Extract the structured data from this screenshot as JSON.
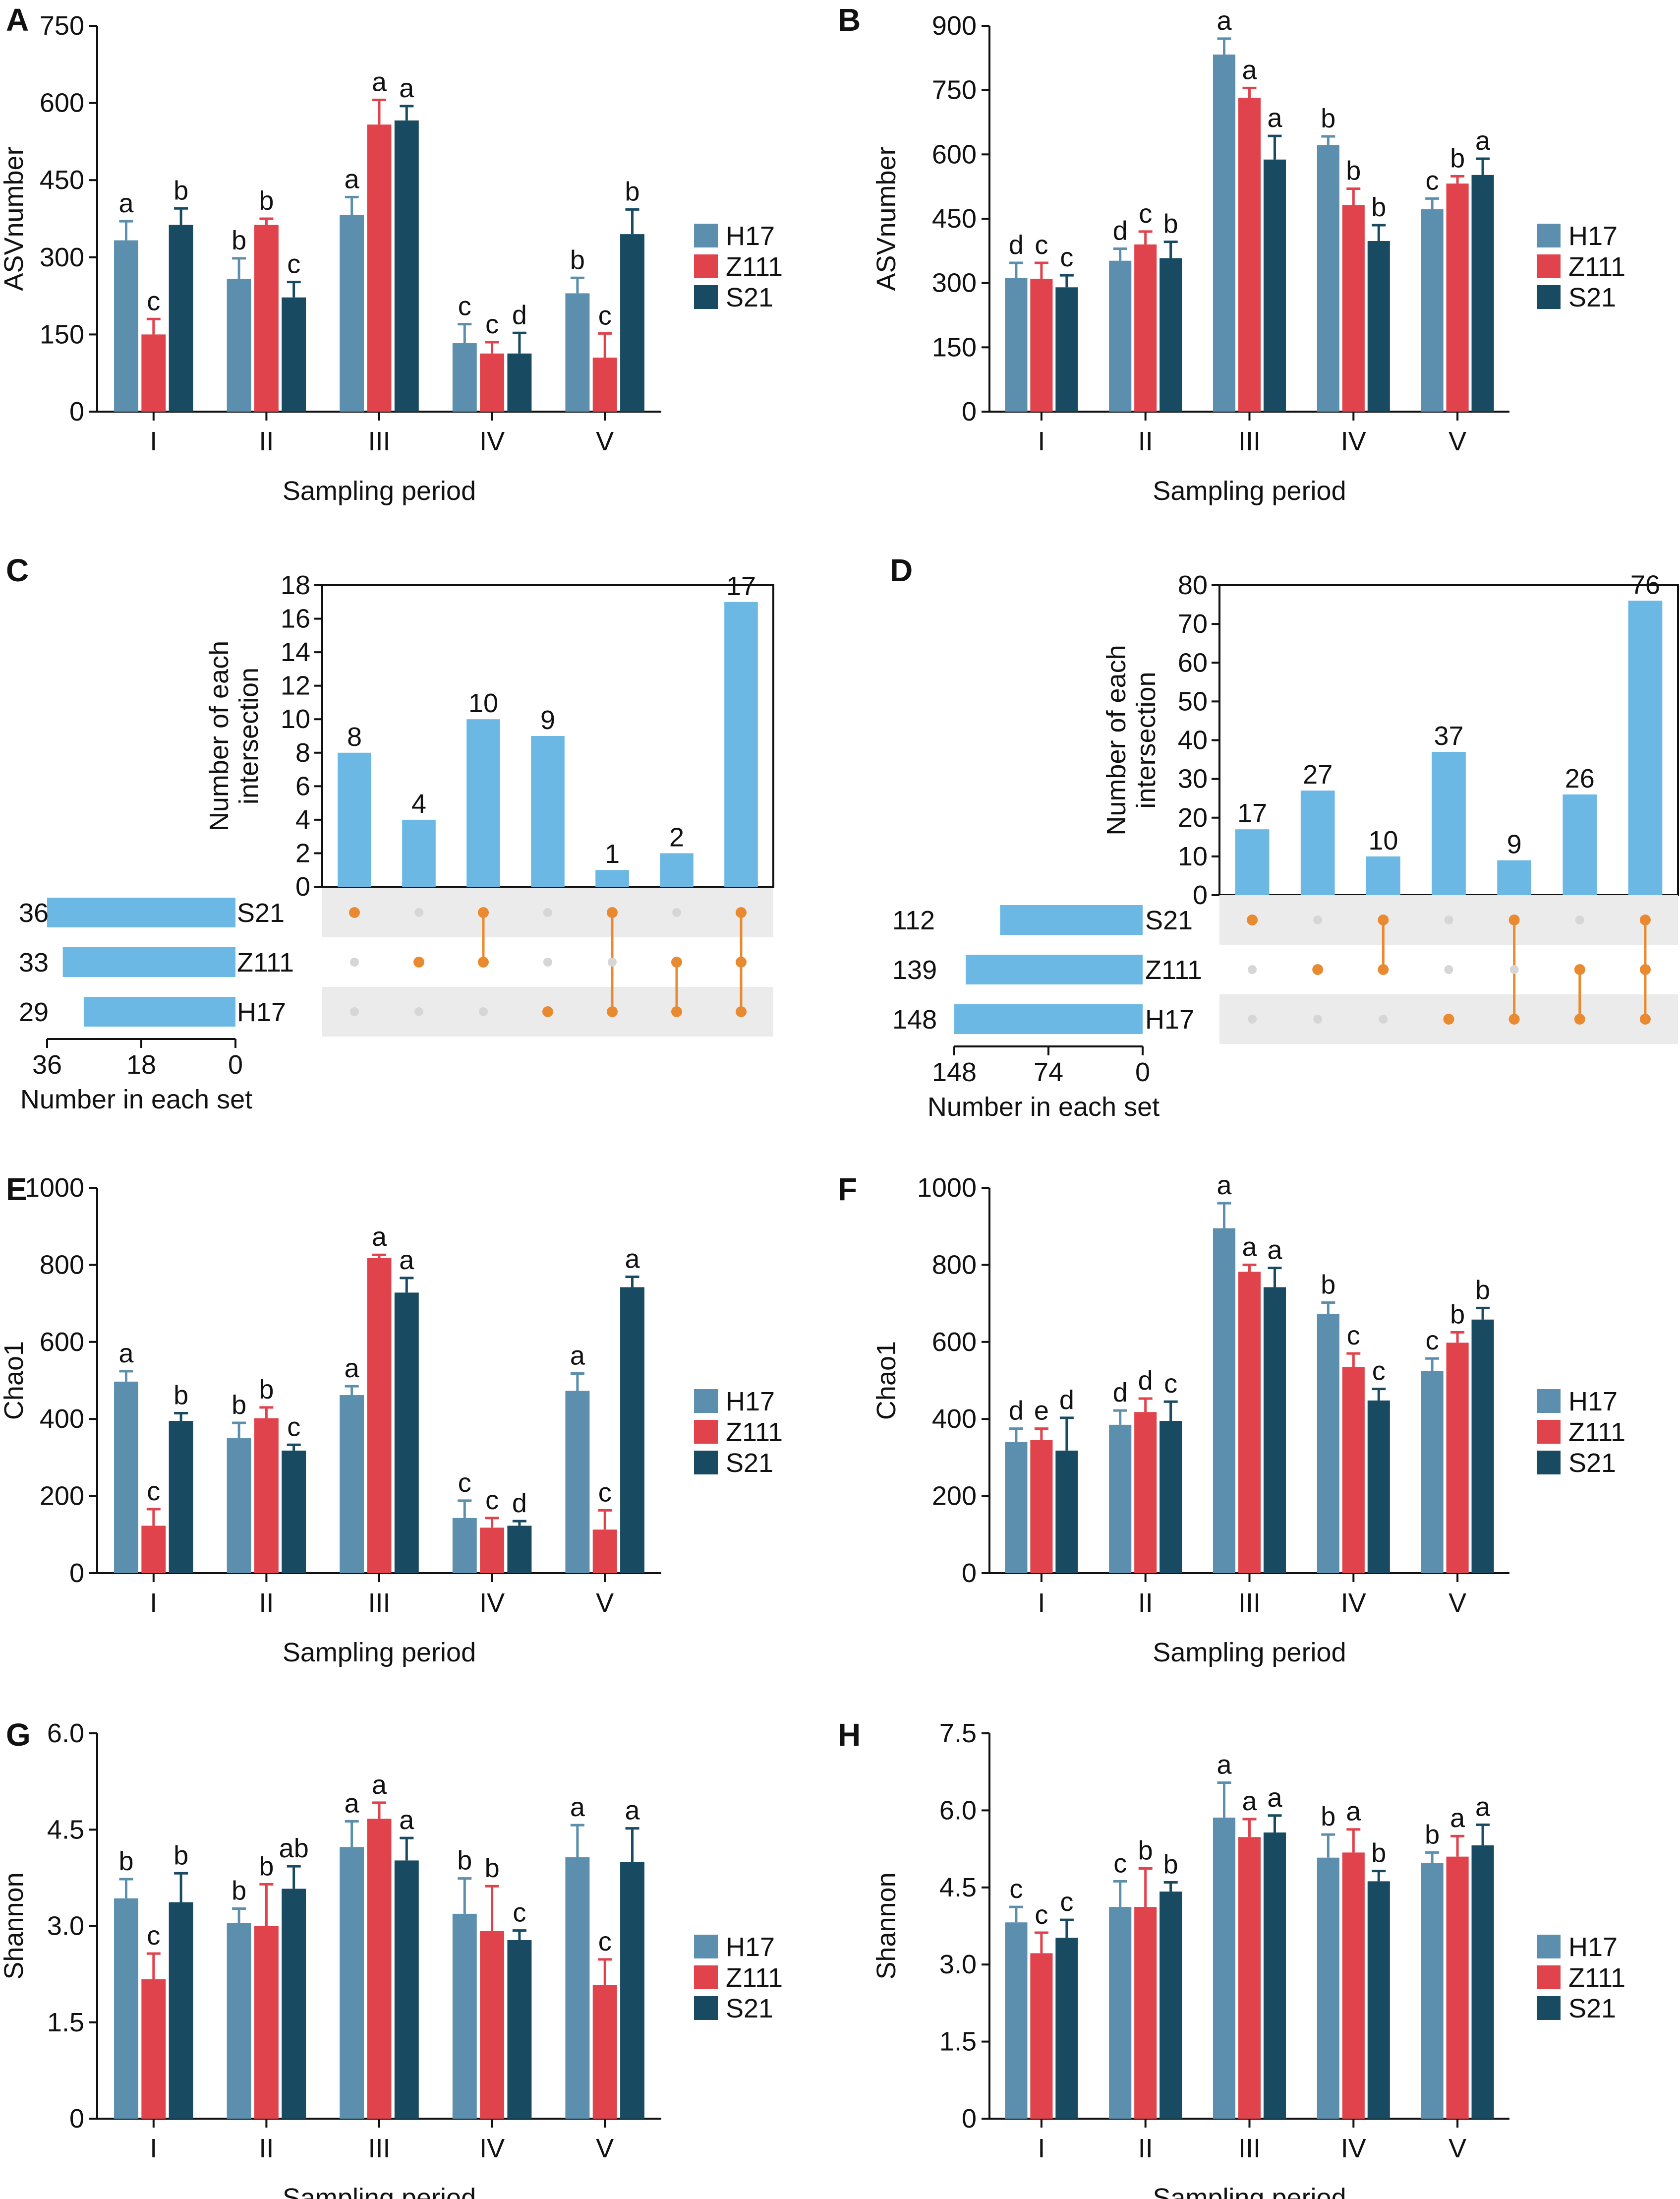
{
  "colors": {
    "H17": "#5b8fad",
    "Z111": "#e0434b",
    "S21": "#184a61",
    "upset_bar": "#6bb8e4",
    "upset_dot": "#ea8a30",
    "upset_dot_off": "#d6d6d6",
    "upset_band": "#ebebeb"
  },
  "chart_data": [
    {
      "panel": "A",
      "type": "bar",
      "categories": [
        "I",
        "II",
        "III",
        "IV",
        "V"
      ],
      "xlabel": "Sampling period",
      "ylabel": "ASVnumber",
      "ylim": [
        0,
        750
      ],
      "yticks": [
        "0",
        "150",
        "300",
        "450",
        "600",
        "750"
      ],
      "legend": "right",
      "series": [
        {
          "name": "H17",
          "values": [
            333,
            258,
            382,
            133,
            230
          ],
          "errors": [
            37,
            40,
            35,
            37,
            30
          ],
          "letters": [
            "a",
            "b",
            "a",
            "c",
            "b"
          ]
        },
        {
          "name": "Z111",
          "values": [
            150,
            363,
            558,
            113,
            105
          ],
          "errors": [
            30,
            12,
            48,
            22,
            47
          ],
          "letters": [
            "c",
            "b",
            "a",
            "c",
            "c"
          ]
        },
        {
          "name": "S21",
          "values": [
            363,
            222,
            566,
            113,
            345
          ],
          "errors": [
            32,
            30,
            28,
            40,
            48
          ],
          "letters": [
            "b",
            "c",
            "a",
            "d",
            "b"
          ]
        }
      ]
    },
    {
      "panel": "B",
      "type": "bar",
      "categories": [
        "I",
        "II",
        "III",
        "IV",
        "V"
      ],
      "xlabel": "Sampling period",
      "ylabel": "ASVnumber",
      "ylim": [
        0,
        900
      ],
      "yticks": [
        "0",
        "150",
        "300",
        "450",
        "600",
        "750",
        "900"
      ],
      "legend": "right",
      "series": [
        {
          "name": "H17",
          "values": [
            312,
            352,
            833,
            622,
            472
          ],
          "errors": [
            35,
            28,
            37,
            20,
            25
          ],
          "letters": [
            "d",
            "d",
            "a",
            "b",
            "c"
          ]
        },
        {
          "name": "Z111",
          "values": [
            310,
            390,
            732,
            482,
            532
          ],
          "errors": [
            37,
            30,
            23,
            38,
            17
          ],
          "letters": [
            "c",
            "c",
            "a",
            "b",
            "b"
          ]
        },
        {
          "name": "S21",
          "values": [
            290,
            358,
            588,
            398,
            552
          ],
          "errors": [
            28,
            38,
            55,
            37,
            38
          ],
          "letters": [
            "c",
            "b",
            "a",
            "b",
            "a"
          ]
        }
      ]
    },
    {
      "panel": "C",
      "type": "bar",
      "subtype": "upset",
      "ylabel": "Number of each intersection",
      "xlabel": "Number in each set",
      "ylim": [
        0,
        18
      ],
      "yticks": [
        "0",
        "2",
        "4",
        "6",
        "8",
        "10",
        "12",
        "14",
        "16",
        "18"
      ],
      "set_xticks": [
        "36",
        "18",
        "0"
      ],
      "set_max": 36,
      "sets": [
        {
          "name": "S21",
          "size": 36
        },
        {
          "name": "Z111",
          "size": 33
        },
        {
          "name": "H17",
          "size": 29
        }
      ],
      "intersections": [
        {
          "value": 8,
          "members": [
            "S21"
          ]
        },
        {
          "value": 4,
          "members": [
            "Z111"
          ]
        },
        {
          "value": 10,
          "members": [
            "S21",
            "Z111"
          ]
        },
        {
          "value": 9,
          "members": [
            "H17"
          ]
        },
        {
          "value": 1,
          "members": [
            "S21",
            "H17"
          ]
        },
        {
          "value": 2,
          "members": [
            "Z111",
            "H17"
          ]
        },
        {
          "value": 17,
          "members": [
            "S21",
            "Z111",
            "H17"
          ]
        }
      ]
    },
    {
      "panel": "D",
      "type": "bar",
      "subtype": "upset",
      "ylabel": "Number of each intersection",
      "xlabel": "Number in each set",
      "ylim": [
        0,
        80
      ],
      "yticks": [
        "0",
        "10",
        "20",
        "30",
        "40",
        "50",
        "60",
        "70",
        "80"
      ],
      "set_xticks": [
        "148",
        "74",
        "0"
      ],
      "set_max": 148,
      "sets": [
        {
          "name": "S21",
          "size": 112
        },
        {
          "name": "Z111",
          "size": 139
        },
        {
          "name": "H17",
          "size": 148
        }
      ],
      "intersections": [
        {
          "value": 17,
          "members": [
            "S21"
          ]
        },
        {
          "value": 27,
          "members": [
            "Z111"
          ]
        },
        {
          "value": 10,
          "members": [
            "S21",
            "Z111"
          ]
        },
        {
          "value": 37,
          "members": [
            "H17"
          ]
        },
        {
          "value": 9,
          "members": [
            "S21",
            "H17"
          ]
        },
        {
          "value": 26,
          "members": [
            "Z111",
            "H17"
          ]
        },
        {
          "value": 76,
          "members": [
            "S21",
            "Z111",
            "H17"
          ]
        }
      ]
    },
    {
      "panel": "E",
      "type": "bar",
      "categories": [
        "I",
        "II",
        "III",
        "IV",
        "V"
      ],
      "xlabel": "Sampling period",
      "ylabel": "Chao1",
      "ylim": [
        0,
        1000
      ],
      "yticks": [
        "0",
        "200",
        "400",
        "600",
        "800",
        "1000"
      ],
      "legend": "right",
      "series": [
        {
          "name": "H17",
          "values": [
            497,
            350,
            462,
            143,
            473
          ],
          "errors": [
            27,
            40,
            23,
            45,
            45
          ],
          "letters": [
            "a",
            "b",
            "a",
            "c",
            "a"
          ]
        },
        {
          "name": "Z111",
          "values": [
            123,
            402,
            818,
            118,
            113
          ],
          "errors": [
            43,
            28,
            8,
            25,
            50
          ],
          "letters": [
            "c",
            "b",
            "a",
            "c",
            "c"
          ]
        },
        {
          "name": "S21",
          "values": [
            395,
            318,
            728,
            123,
            742
          ],
          "errors": [
            20,
            15,
            38,
            12,
            27
          ],
          "letters": [
            "b",
            "c",
            "a",
            "d",
            "a"
          ]
        }
      ]
    },
    {
      "panel": "F",
      "type": "bar",
      "categories": [
        "I",
        "II",
        "III",
        "IV",
        "V"
      ],
      "xlabel": "Sampling period",
      "ylabel": "Chao1",
      "ylim": [
        0,
        1000
      ],
      "yticks": [
        "0",
        "200",
        "400",
        "600",
        "800",
        "1000"
      ],
      "legend": "right",
      "series": [
        {
          "name": "H17",
          "values": [
            340,
            385,
            895,
            672,
            525
          ],
          "errors": [
            35,
            37,
            65,
            30,
            32
          ],
          "letters": [
            "d",
            "d",
            "a",
            "b",
            "c"
          ]
        },
        {
          "name": "Z111",
          "values": [
            345,
            418,
            782,
            535,
            598
          ],
          "errors": [
            30,
            35,
            18,
            35,
            27
          ],
          "letters": [
            "e",
            "d",
            "a",
            "c",
            "b"
          ]
        },
        {
          "name": "S21",
          "values": [
            318,
            395,
            742,
            448,
            658
          ],
          "errors": [
            85,
            50,
            50,
            30,
            30
          ],
          "letters": [
            "d",
            "c",
            "a",
            "c",
            "b"
          ]
        }
      ]
    },
    {
      "panel": "G",
      "type": "bar",
      "categories": [
        "I",
        "II",
        "III",
        "IV",
        "V"
      ],
      "xlabel": "Sampling period",
      "ylabel": "Shannon",
      "ylim": [
        0,
        6.0
      ],
      "yticks": [
        "0",
        "1.5",
        "3.0",
        "4.5",
        "6.0"
      ],
      "legend": "right",
      "series": [
        {
          "name": "H17",
          "values": [
            3.43,
            3.05,
            4.23,
            3.19,
            4.07
          ],
          "errors": [
            0.3,
            0.22,
            0.4,
            0.55,
            0.5
          ],
          "letters": [
            "b",
            "b",
            "a",
            "b",
            "a"
          ]
        },
        {
          "name": "Z111",
          "values": [
            2.17,
            3.0,
            4.67,
            2.92,
            2.08
          ],
          "errors": [
            0.4,
            0.65,
            0.25,
            0.7,
            0.4
          ],
          "letters": [
            "c",
            "b",
            "a",
            "b",
            "c"
          ]
        },
        {
          "name": "S21",
          "values": [
            3.37,
            3.58,
            4.02,
            2.78,
            4.0
          ],
          "errors": [
            0.45,
            0.35,
            0.35,
            0.15,
            0.52
          ],
          "letters": [
            "b",
            "ab",
            "a",
            "c",
            "a"
          ]
        }
      ]
    },
    {
      "panel": "H",
      "type": "bar",
      "categories": [
        "I",
        "II",
        "III",
        "IV",
        "V"
      ],
      "xlabel": "Sampling period",
      "ylabel": "Shannon",
      "ylim": [
        0,
        7.5
      ],
      "yticks": [
        "0",
        "1.5",
        "3.0",
        "4.5",
        "6.0",
        "7.5"
      ],
      "legend": "right",
      "series": [
        {
          "name": "H17",
          "values": [
            3.82,
            4.12,
            5.86,
            5.08,
            4.98
          ],
          "errors": [
            0.3,
            0.5,
            0.68,
            0.45,
            0.2
          ],
          "letters": [
            "c",
            "c",
            "a",
            "b",
            "b"
          ]
        },
        {
          "name": "Z111",
          "values": [
            3.22,
            4.12,
            5.48,
            5.18,
            5.1
          ],
          "errors": [
            0.4,
            0.75,
            0.35,
            0.45,
            0.4
          ],
          "letters": [
            "c",
            "b",
            "a",
            "a",
            "a"
          ]
        },
        {
          "name": "S21",
          "values": [
            3.52,
            4.42,
            5.57,
            4.62,
            5.32
          ],
          "errors": [
            0.35,
            0.18,
            0.33,
            0.2,
            0.4
          ],
          "letters": [
            "c",
            "b",
            "a",
            "b",
            "a"
          ]
        }
      ]
    }
  ]
}
